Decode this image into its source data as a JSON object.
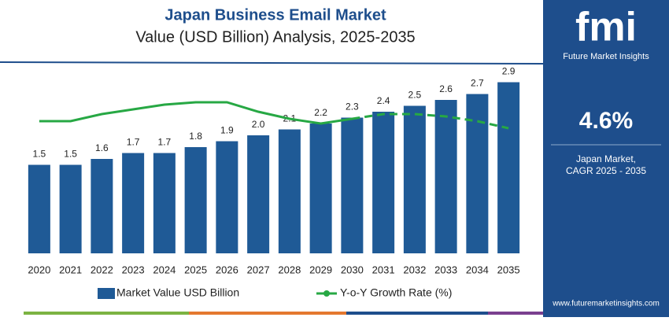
{
  "chart_data": {
    "type": "bar",
    "title": "Japan Business Email Market",
    "subtitle": "Value (USD Billion) Analysis, 2025-2035",
    "categories": [
      "2020",
      "2021",
      "2022",
      "2023",
      "2024",
      "2025",
      "2026",
      "2027",
      "2028",
      "2029",
      "2030",
      "2031",
      "2032",
      "2033",
      "2034",
      "2035"
    ],
    "series": [
      {
        "name": "Market Value USD Billion",
        "color": "#1f5a96",
        "values": [
          1.5,
          1.5,
          1.6,
          1.7,
          1.7,
          1.8,
          1.9,
          2.0,
          2.1,
          2.2,
          2.3,
          2.4,
          2.5,
          2.6,
          2.7,
          2.9
        ],
        "value_labels": [
          "1.5",
          "1.5",
          "1.6",
          "1.7",
          "1.7",
          "1.8",
          "1.9",
          "2.0",
          "2.1",
          "2.2",
          "2.3",
          "2.4",
          "2.5",
          "2.6",
          "2.7",
          "2.9"
        ]
      },
      {
        "name": "Y-o-Y Growth Rate (%)",
        "color": "#27a844",
        "type": "line",
        "axis": "y2",
        "dashed_from": "2030",
        "values": [
          5.6,
          5.6,
          5.9,
          6.1,
          6.3,
          6.4,
          6.4,
          6.0,
          5.7,
          5.5,
          5.7,
          5.9,
          5.9,
          5.8,
          5.6,
          5.3
        ]
      }
    ],
    "ylim": [
      0,
      3.2
    ],
    "y2lim": [
      0,
      8
    ]
  },
  "sidebar": {
    "logo": "fmi",
    "brand": "Future Market Insights",
    "cagr": "4.6%",
    "market": "Japan Market,",
    "period": "CAGR 2025 - 2035",
    "url": "www.futuremarketinsights.com"
  }
}
